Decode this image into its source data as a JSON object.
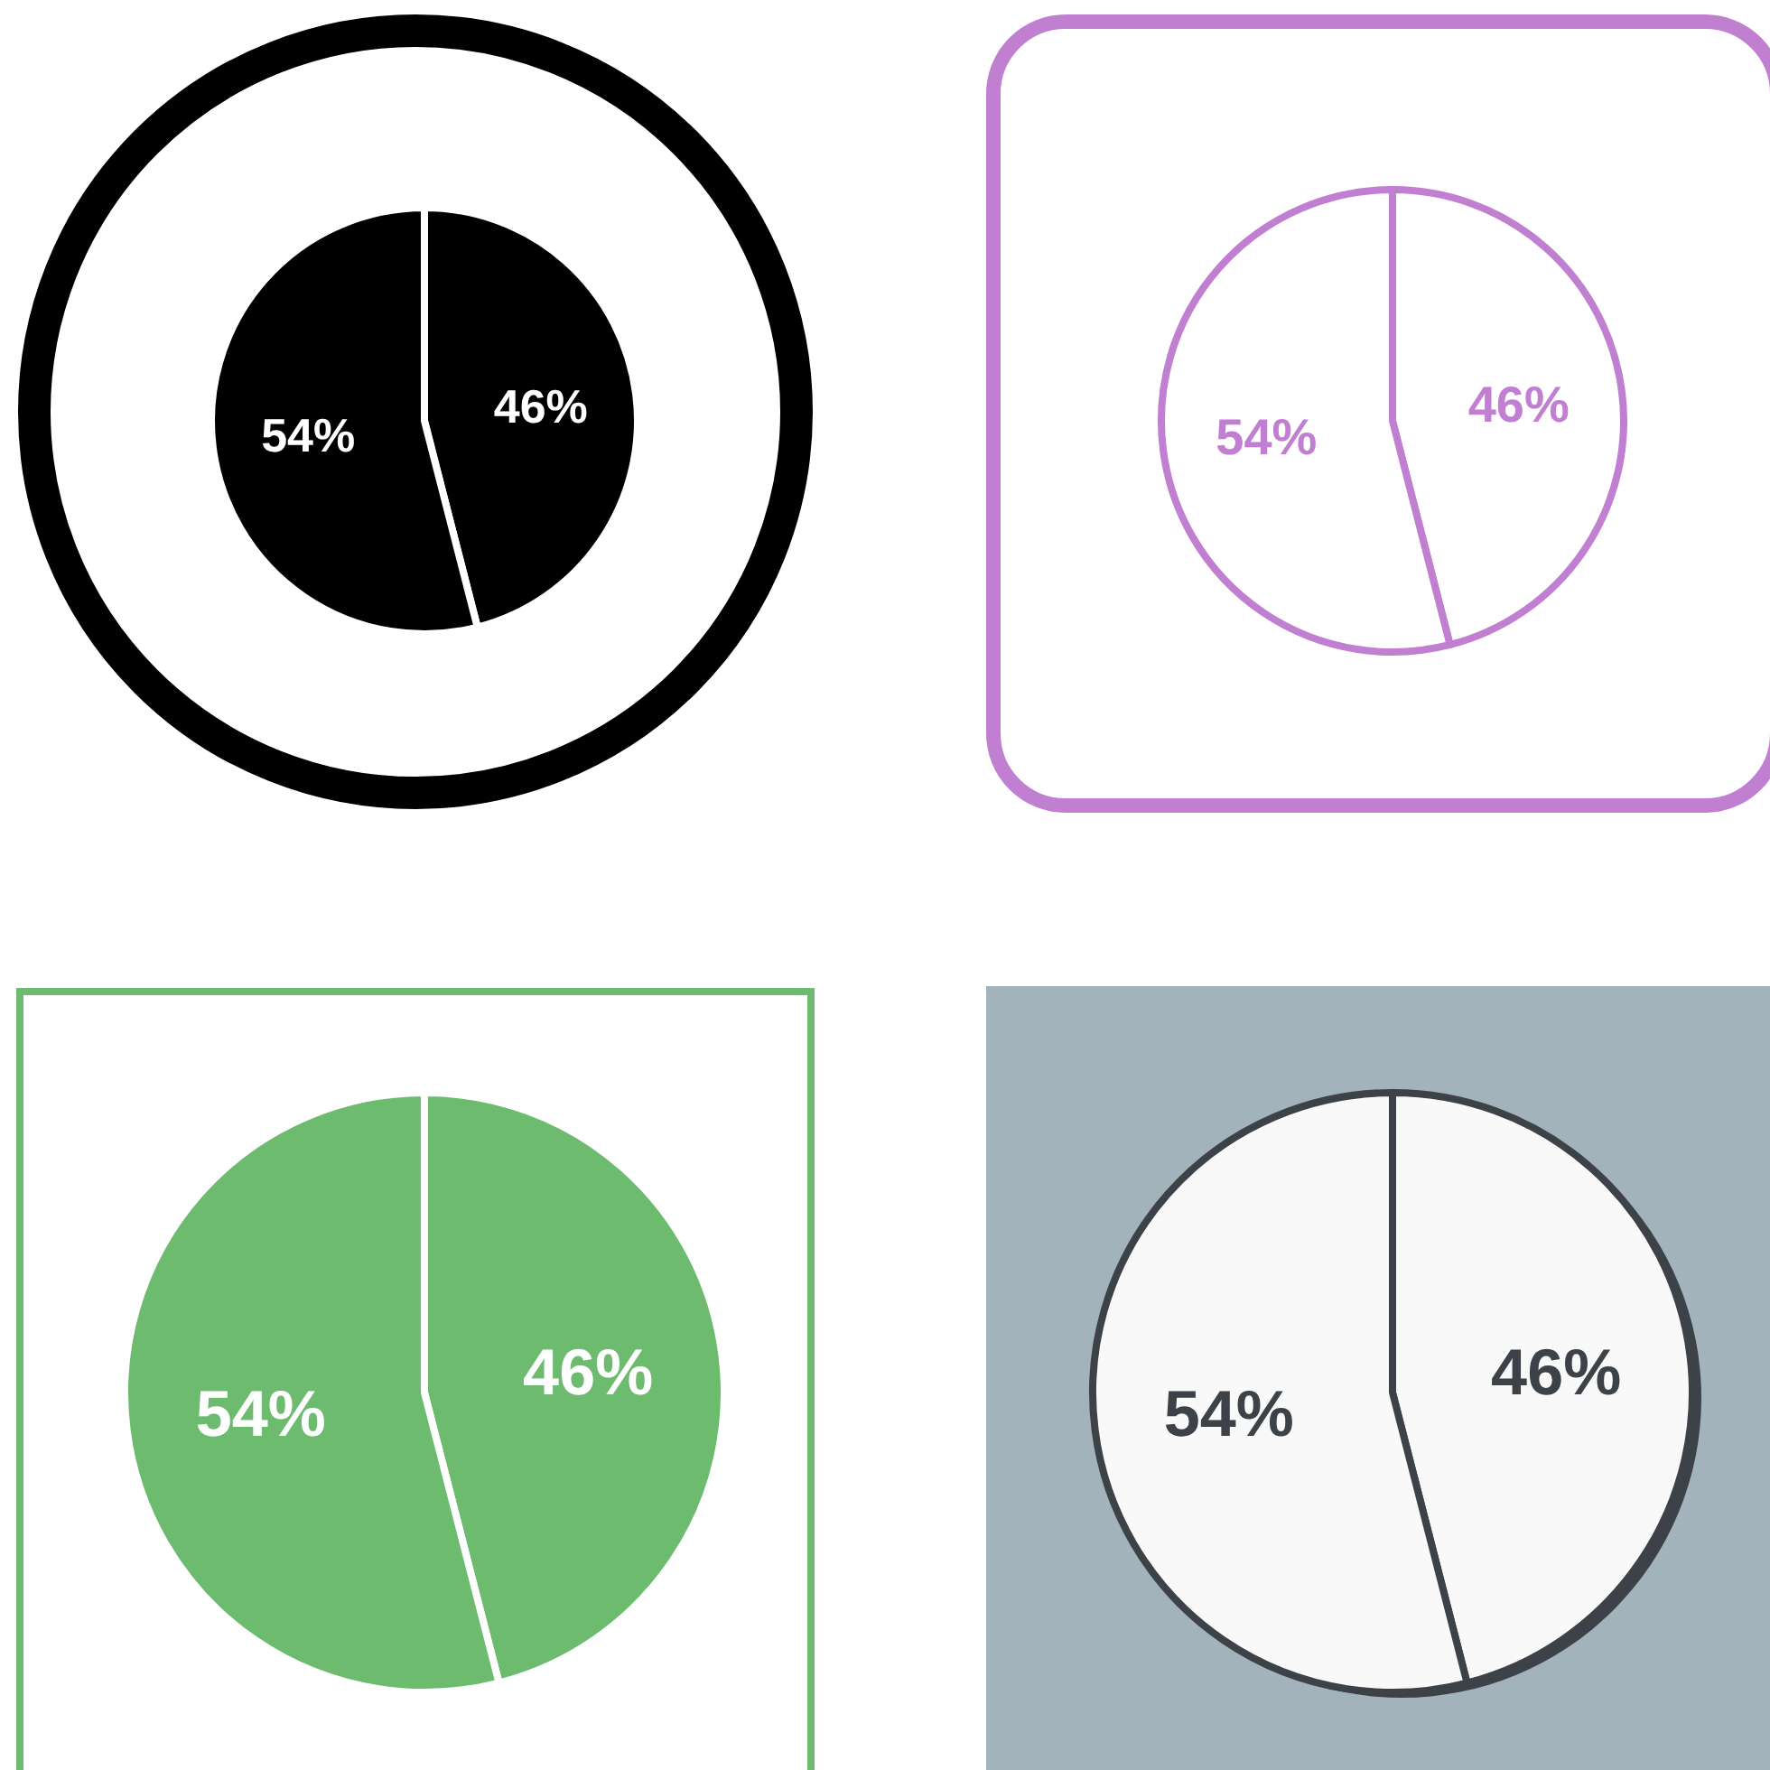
{
  "chart_data": [
    {
      "type": "pie",
      "categories": [
        null,
        null
      ],
      "values": [
        46,
        54
      ],
      "value_labels": [
        "46%",
        "54%"
      ],
      "colors": [
        "#000000",
        "#000000"
      ]
    },
    {
      "type": "pie",
      "categories": [
        null,
        null
      ],
      "values": [
        46,
        54
      ],
      "value_labels": [
        "46%",
        "54%"
      ],
      "colors": [
        "#ffffff",
        "#ffffff"
      ]
    },
    {
      "type": "pie",
      "categories": [
        null,
        null
      ],
      "values": [
        46,
        54
      ],
      "value_labels": [
        "46%",
        "54%"
      ],
      "colors": [
        "#6cbb6e",
        "#6cbb6e"
      ]
    },
    {
      "type": "pie",
      "categories": [
        null,
        null
      ],
      "values": [
        46,
        54
      ],
      "value_labels": [
        "46%",
        "54%"
      ],
      "colors": [
        "#f9f9f9",
        "#f9f9f9"
      ]
    }
  ]
}
